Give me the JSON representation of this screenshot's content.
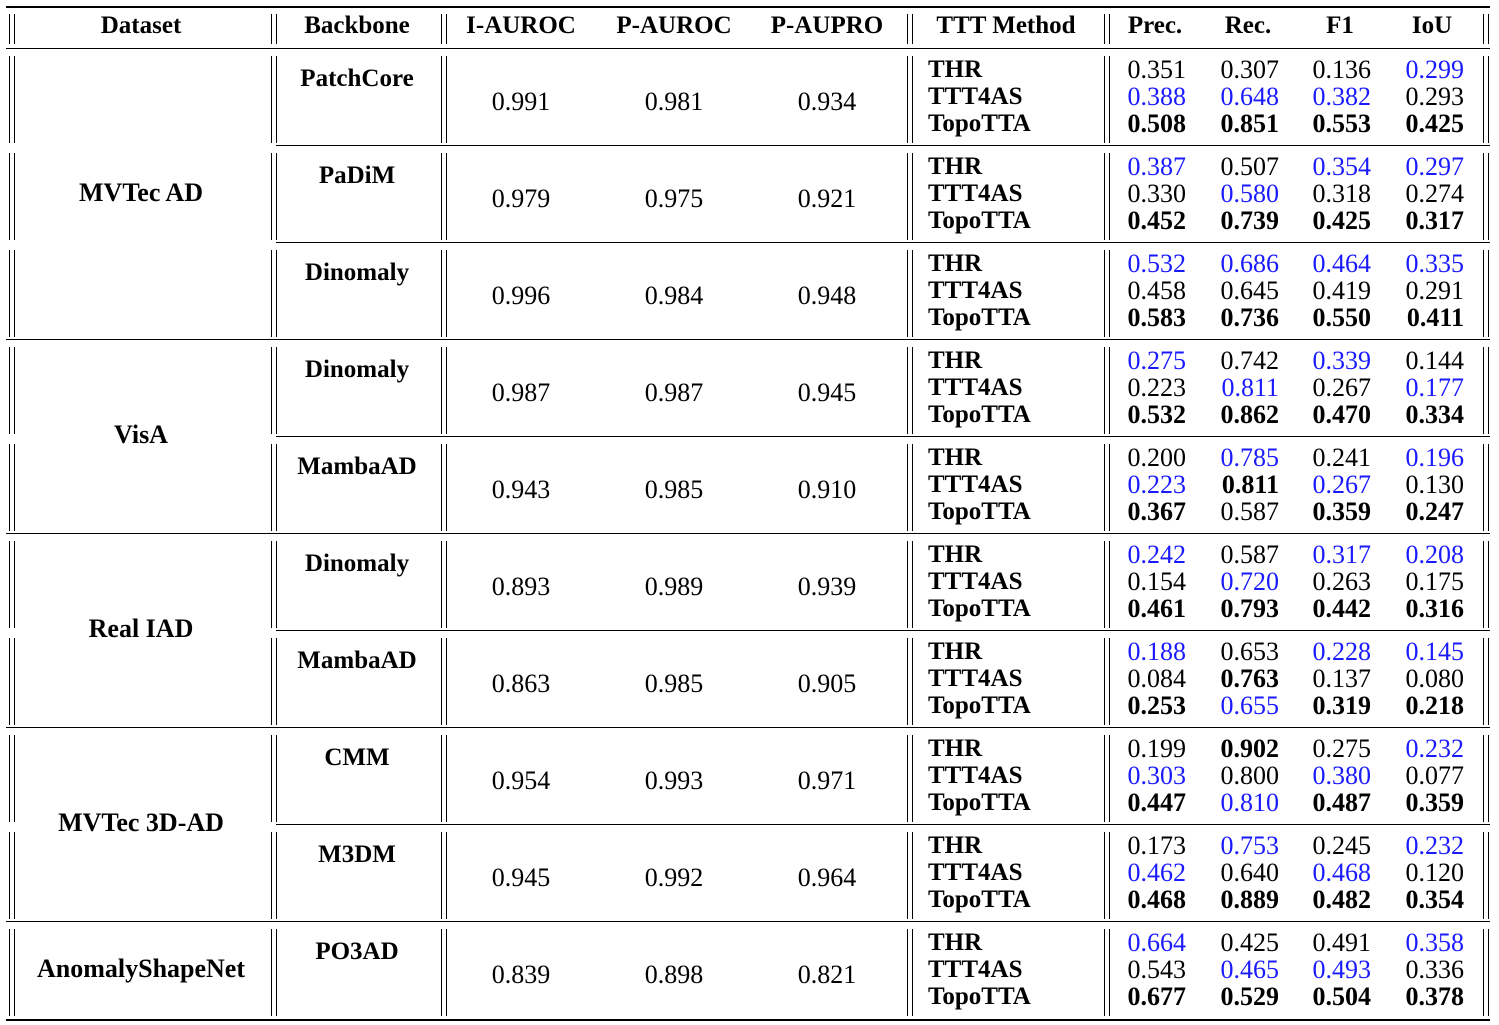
{
  "headers": [
    "Dataset",
    "Backbone",
    "I-AUROC",
    "P-AUROC",
    "P-AUPRO",
    "TTT Method",
    "Prec.",
    "Rec.",
    "F1",
    "IoU"
  ],
  "colors": {
    "best": "#000000",
    "second": "#1a1aff"
  },
  "datasets": [
    {
      "name": "MVTec AD",
      "backbones": [
        {
          "name": "PatchCore",
          "i_auroc": "0.991",
          "p_auroc": "0.981",
          "p_aupro": "0.934",
          "methods": [
            {
              "name": "THR",
              "cells": [
                {
                  "v": "0.351",
                  "s": ""
                },
                {
                  "v": "0.307",
                  "s": ""
                },
                {
                  "v": "0.136",
                  "s": ""
                },
                {
                  "v": "0.299",
                  "s": "blue"
                }
              ]
            },
            {
              "name": "TTT4AS",
              "cells": [
                {
                  "v": "0.388",
                  "s": "blue"
                },
                {
                  "v": "0.648",
                  "s": "blue"
                },
                {
                  "v": "0.382",
                  "s": "blue"
                },
                {
                  "v": "0.293",
                  "s": ""
                }
              ]
            },
            {
              "name": "TopoTTA",
              "cells": [
                {
                  "v": "0.508",
                  "s": "bold"
                },
                {
                  "v": "0.851",
                  "s": "bold"
                },
                {
                  "v": "0.553",
                  "s": "bold"
                },
                {
                  "v": "0.425",
                  "s": "bold"
                }
              ]
            }
          ]
        },
        {
          "name": "PaDiM",
          "i_auroc": "0.979",
          "p_auroc": "0.975",
          "p_aupro": "0.921",
          "methods": [
            {
              "name": "THR",
              "cells": [
                {
                  "v": "0.387",
                  "s": "blue"
                },
                {
                  "v": "0.507",
                  "s": ""
                },
                {
                  "v": "0.354",
                  "s": "blue"
                },
                {
                  "v": "0.297",
                  "s": "blue"
                }
              ]
            },
            {
              "name": "TTT4AS",
              "cells": [
                {
                  "v": "0.330",
                  "s": ""
                },
                {
                  "v": "0.580",
                  "s": "blue"
                },
                {
                  "v": "0.318",
                  "s": ""
                },
                {
                  "v": "0.274",
                  "s": ""
                }
              ]
            },
            {
              "name": "TopoTTA",
              "cells": [
                {
                  "v": "0.452",
                  "s": "bold"
                },
                {
                  "v": "0.739",
                  "s": "bold"
                },
                {
                  "v": "0.425",
                  "s": "bold"
                },
                {
                  "v": "0.317",
                  "s": "bold"
                }
              ]
            }
          ]
        },
        {
          "name": "Dinomaly",
          "i_auroc": "0.996",
          "p_auroc": "0.984",
          "p_aupro": "0.948",
          "methods": [
            {
              "name": "THR",
              "cells": [
                {
                  "v": "0.532",
                  "s": "blue"
                },
                {
                  "v": "0.686",
                  "s": "blue"
                },
                {
                  "v": "0.464",
                  "s": "blue"
                },
                {
                  "v": "0.335",
                  "s": "blue"
                }
              ]
            },
            {
              "name": "TTT4AS",
              "cells": [
                {
                  "v": "0.458",
                  "s": ""
                },
                {
                  "v": "0.645",
                  "s": ""
                },
                {
                  "v": "0.419",
                  "s": ""
                },
                {
                  "v": "0.291",
                  "s": ""
                }
              ]
            },
            {
              "name": "TopoTTA",
              "cells": [
                {
                  "v": "0.583",
                  "s": "bold"
                },
                {
                  "v": "0.736",
                  "s": "bold"
                },
                {
                  "v": "0.550",
                  "s": "bold"
                },
                {
                  "v": "0.411",
                  "s": "bold"
                }
              ]
            }
          ]
        }
      ]
    },
    {
      "name": "VisA",
      "backbones": [
        {
          "name": "Dinomaly",
          "i_auroc": "0.987",
          "p_auroc": "0.987",
          "p_aupro": "0.945",
          "methods": [
            {
              "name": "THR",
              "cells": [
                {
                  "v": "0.275",
                  "s": "blue"
                },
                {
                  "v": "0.742",
                  "s": ""
                },
                {
                  "v": "0.339",
                  "s": "blue"
                },
                {
                  "v": "0.144",
                  "s": ""
                }
              ]
            },
            {
              "name": "TTT4AS",
              "cells": [
                {
                  "v": "0.223",
                  "s": ""
                },
                {
                  "v": "0.811",
                  "s": "blue"
                },
                {
                  "v": "0.267",
                  "s": ""
                },
                {
                  "v": "0.177",
                  "s": "blue"
                }
              ]
            },
            {
              "name": "TopoTTA",
              "cells": [
                {
                  "v": "0.532",
                  "s": "bold"
                },
                {
                  "v": "0.862",
                  "s": "bold"
                },
                {
                  "v": "0.470",
                  "s": "bold"
                },
                {
                  "v": "0.334",
                  "s": "bold"
                }
              ]
            }
          ]
        },
        {
          "name": "MambaAD",
          "i_auroc": "0.943",
          "p_auroc": "0.985",
          "p_aupro": "0.910",
          "methods": [
            {
              "name": "THR",
              "cells": [
                {
                  "v": "0.200",
                  "s": ""
                },
                {
                  "v": "0.785",
                  "s": "blue"
                },
                {
                  "v": "0.241",
                  "s": ""
                },
                {
                  "v": "0.196",
                  "s": "blue"
                }
              ]
            },
            {
              "name": "TTT4AS",
              "cells": [
                {
                  "v": "0.223",
                  "s": "blue"
                },
                {
                  "v": "0.811",
                  "s": "bold"
                },
                {
                  "v": "0.267",
                  "s": "blue"
                },
                {
                  "v": "0.130",
                  "s": ""
                }
              ]
            },
            {
              "name": "TopoTTA",
              "cells": [
                {
                  "v": "0.367",
                  "s": "bold"
                },
                {
                  "v": "0.587",
                  "s": ""
                },
                {
                  "v": "0.359",
                  "s": "bold"
                },
                {
                  "v": "0.247",
                  "s": "bold"
                }
              ]
            }
          ]
        }
      ]
    },
    {
      "name": "Real IAD",
      "backbones": [
        {
          "name": "Dinomaly",
          "i_auroc": "0.893",
          "p_auroc": "0.989",
          "p_aupro": "0.939",
          "methods": [
            {
              "name": "THR",
              "cells": [
                {
                  "v": "0.242",
                  "s": "blue"
                },
                {
                  "v": "0.587",
                  "s": ""
                },
                {
                  "v": "0.317",
                  "s": "blue"
                },
                {
                  "v": "0.208",
                  "s": "blue"
                }
              ]
            },
            {
              "name": "TTT4AS",
              "cells": [
                {
                  "v": "0.154",
                  "s": ""
                },
                {
                  "v": "0.720",
                  "s": "blue"
                },
                {
                  "v": "0.263",
                  "s": ""
                },
                {
                  "v": "0.175",
                  "s": ""
                }
              ]
            },
            {
              "name": "TopoTTA",
              "cells": [
                {
                  "v": "0.461",
                  "s": "bold"
                },
                {
                  "v": "0.793",
                  "s": "bold"
                },
                {
                  "v": "0.442",
                  "s": "bold"
                },
                {
                  "v": "0.316",
                  "s": "bold"
                }
              ]
            }
          ]
        },
        {
          "name": "MambaAD",
          "i_auroc": "0.863",
          "p_auroc": "0.985",
          "p_aupro": "0.905",
          "methods": [
            {
              "name": "THR",
              "cells": [
                {
                  "v": "0.188",
                  "s": "blue"
                },
                {
                  "v": "0.653",
                  "s": ""
                },
                {
                  "v": "0.228",
                  "s": "blue"
                },
                {
                  "v": "0.145",
                  "s": "blue"
                }
              ]
            },
            {
              "name": "TTT4AS",
              "cells": [
                {
                  "v": "0.084",
                  "s": ""
                },
                {
                  "v": "0.763",
                  "s": "bold"
                },
                {
                  "v": "0.137",
                  "s": ""
                },
                {
                  "v": "0.080",
                  "s": ""
                }
              ]
            },
            {
              "name": "TopoTTA",
              "cells": [
                {
                  "v": "0.253",
                  "s": "bold"
                },
                {
                  "v": "0.655",
                  "s": "blue"
                },
                {
                  "v": "0.319",
                  "s": "bold"
                },
                {
                  "v": "0.218",
                  "s": "bold"
                }
              ]
            }
          ]
        }
      ]
    },
    {
      "name": "MVTec 3D-AD",
      "backbones": [
        {
          "name": "CMM",
          "i_auroc": "0.954",
          "p_auroc": "0.993",
          "p_aupro": "0.971",
          "methods": [
            {
              "name": "THR",
              "cells": [
                {
                  "v": "0.199",
                  "s": ""
                },
                {
                  "v": "0.902",
                  "s": "bold"
                },
                {
                  "v": "0.275",
                  "s": ""
                },
                {
                  "v": "0.232",
                  "s": "blue"
                }
              ]
            },
            {
              "name": "TTT4AS",
              "cells": [
                {
                  "v": "0.303",
                  "s": "blue"
                },
                {
                  "v": "0.800",
                  "s": ""
                },
                {
                  "v": "0.380",
                  "s": "blue"
                },
                {
                  "v": "0.077",
                  "s": ""
                }
              ]
            },
            {
              "name": "TopoTTA",
              "cells": [
                {
                  "v": "0.447",
                  "s": "bold"
                },
                {
                  "v": "0.810",
                  "s": "blue"
                },
                {
                  "v": "0.487",
                  "s": "bold"
                },
                {
                  "v": "0.359",
                  "s": "bold"
                }
              ]
            }
          ]
        },
        {
          "name": "M3DM",
          "i_auroc": "0.945",
          "p_auroc": "0.992",
          "p_aupro": "0.964",
          "methods": [
            {
              "name": "THR",
              "cells": [
                {
                  "v": "0.173",
                  "s": ""
                },
                {
                  "v": "0.753",
                  "s": "blue"
                },
                {
                  "v": "0.245",
                  "s": ""
                },
                {
                  "v": "0.232",
                  "s": "blue"
                }
              ]
            },
            {
              "name": "TTT4AS",
              "cells": [
                {
                  "v": "0.462",
                  "s": "blue"
                },
                {
                  "v": "0.640",
                  "s": ""
                },
                {
                  "v": "0.468",
                  "s": "blue"
                },
                {
                  "v": "0.120",
                  "s": ""
                }
              ]
            },
            {
              "name": "TopoTTA",
              "cells": [
                {
                  "v": "0.468",
                  "s": "bold"
                },
                {
                  "v": "0.889",
                  "s": "bold"
                },
                {
                  "v": "0.482",
                  "s": "bold"
                },
                {
                  "v": "0.354",
                  "s": "bold"
                }
              ]
            }
          ]
        }
      ]
    },
    {
      "name": "AnomalyShapeNet",
      "backbones": [
        {
          "name": "PO3AD",
          "i_auroc": "0.839",
          "p_auroc": "0.898",
          "p_aupro": "0.821",
          "methods": [
            {
              "name": "THR",
              "cells": [
                {
                  "v": "0.664",
                  "s": "blue"
                },
                {
                  "v": "0.425",
                  "s": ""
                },
                {
                  "v": "0.491",
                  "s": ""
                },
                {
                  "v": "0.358",
                  "s": "blue"
                }
              ]
            },
            {
              "name": "TTT4AS",
              "cells": [
                {
                  "v": "0.543",
                  "s": ""
                },
                {
                  "v": "0.465",
                  "s": "blue"
                },
                {
                  "v": "0.493",
                  "s": "blue"
                },
                {
                  "v": "0.336",
                  "s": ""
                }
              ]
            },
            {
              "name": "TopoTTA",
              "cells": [
                {
                  "v": "0.677",
                  "s": "bold"
                },
                {
                  "v": "0.529",
                  "s": "bold"
                },
                {
                  "v": "0.504",
                  "s": "bold"
                },
                {
                  "v": "0.378",
                  "s": "bold"
                }
              ]
            }
          ]
        }
      ]
    }
  ]
}
